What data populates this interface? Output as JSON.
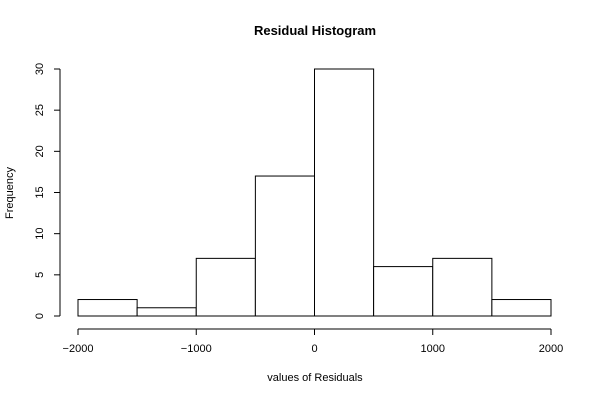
{
  "chart_data": {
    "type": "bar",
    "title": "Residual Histogram",
    "xlabel": "values of Residuals",
    "ylabel": "Frequency",
    "bins": [
      {
        "from": -2000,
        "to": -1500,
        "count": 2
      },
      {
        "from": -1500,
        "to": -1000,
        "count": 1
      },
      {
        "from": -1000,
        "to": -500,
        "count": 7
      },
      {
        "from": -500,
        "to": 0,
        "count": 17
      },
      {
        "from": 0,
        "to": 500,
        "count": 30
      },
      {
        "from": 500,
        "to": 1000,
        "count": 6
      },
      {
        "from": 1000,
        "to": 1500,
        "count": 7
      },
      {
        "from": 1500,
        "to": 2000,
        "count": 2
      }
    ],
    "xlim": [
      -2000,
      2000
    ],
    "ylim": [
      0,
      30
    ],
    "x_ticks": [
      -2000,
      -1000,
      0,
      1000,
      2000
    ],
    "x_tick_labels": [
      "−2000",
      "−1000",
      "0",
      "1000",
      "2000"
    ],
    "y_ticks": [
      0,
      5,
      10,
      15,
      20,
      25,
      30
    ],
    "y_tick_labels": [
      "0",
      "5",
      "10",
      "15",
      "20",
      "25",
      "30"
    ],
    "grid": false,
    "legend": "none"
  }
}
